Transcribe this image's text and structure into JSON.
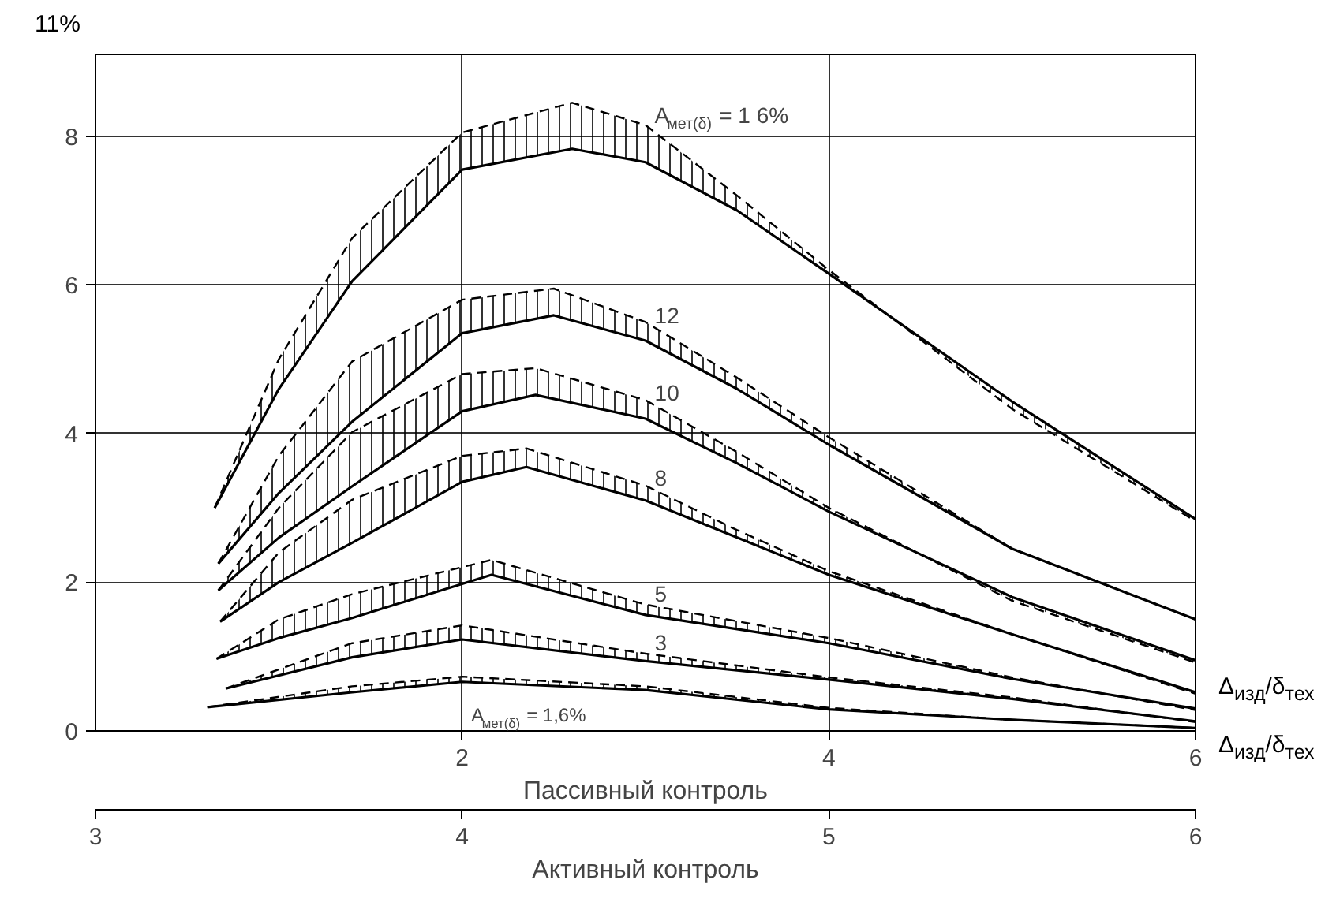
{
  "chart_data": {
    "type": "line",
    "xlabel": "Пассивный контроль",
    "x2label": "Активный контроль",
    "ylabel": "11%",
    "annotations": [
      "Δ$_{изд}$/δ$_{тех}$",
      "Δ$_{изд}$/δ$_{тех}$"
    ],
    "xlim": [
      0,
      6
    ],
    "xticks": [
      2,
      4,
      6
    ],
    "x2lim": [
      3,
      6
    ],
    "x2ticks": [
      3,
      4,
      5,
      6
    ],
    "ylim": [
      0,
      9.1
    ],
    "yticks": [
      0,
      2,
      4,
      6,
      8
    ],
    "grid": true,
    "marker": "none",
    "line_style": "solid",
    "series": [
      {
        "name": "A$_{мет(δ)}$ = 1 6%",
        "color": "#000000",
        "x": [
          0.65,
          1.0,
          1.4,
          2.0,
          2.6,
          3.0,
          3.5,
          4.0,
          5.0,
          6.0
        ],
        "values": [
          3.0,
          4.6,
          6.05,
          7.55,
          7.83,
          7.65,
          7.0,
          6.15,
          4.43,
          2.85
        ],
        "lower": [
          3.0,
          4.6,
          6.05,
          7.55,
          7.83,
          7.65,
          7.0,
          6.15,
          4.43,
          2.85
        ],
        "upper": [
          3.0,
          5.0,
          6.63,
          8.05,
          8.45,
          8.15,
          7.2,
          6.2,
          4.33,
          2.82
        ]
      },
      {
        "color": "#000000",
        "line_style": "dashed",
        "x": [
          0.65,
          1.0,
          1.4,
          2.0,
          2.6,
          3.0,
          3.5,
          4.0,
          5.0,
          6.0
        ],
        "values": [
          3.0,
          5.0,
          6.63,
          8.05,
          8.45,
          8.15,
          7.2,
          6.2,
          4.33,
          2.82
        ]
      },
      {
        "name": "12",
        "color": "#000000",
        "x": [
          0.67,
          1.0,
          1.4,
          2.0,
          2.5,
          3.0,
          3.5,
          4.0,
          5.0,
          6.0
        ],
        "values": [
          2.25,
          3.2,
          4.16,
          5.35,
          5.59,
          5.25,
          4.6,
          3.85,
          2.45,
          1.5
        ],
        "lower": [
          2.25,
          3.2,
          4.16,
          5.35,
          5.59,
          5.25,
          4.6,
          3.85,
          2.45,
          1.5
        ],
        "upper": [
          2.25,
          3.7,
          4.97,
          5.8,
          5.95,
          5.5,
          4.75,
          3.95,
          2.45,
          1.5
        ]
      },
      {
        "color": "#000000",
        "line_style": "dashed",
        "x": [
          0.67,
          1.0,
          1.4,
          2.0,
          2.5,
          3.0,
          3.5,
          4.0,
          5.0,
          6.0
        ],
        "values": [
          2.25,
          3.7,
          4.97,
          5.8,
          5.95,
          5.5,
          4.75,
          3.95,
          2.45,
          1.5
        ]
      },
      {
        "name": "10",
        "color": "#000000",
        "x": [
          0.67,
          1.0,
          1.4,
          2.0,
          2.4,
          3.0,
          3.5,
          4.0,
          5.0,
          6.0
        ],
        "values": [
          1.89,
          2.6,
          3.29,
          4.3,
          4.52,
          4.2,
          3.6,
          2.95,
          1.8,
          0.95
        ],
        "lower": [
          1.89,
          2.6,
          3.29,
          4.3,
          4.52,
          4.2,
          3.6,
          2.95,
          1.8,
          0.95
        ],
        "upper": [
          1.89,
          3.0,
          4.02,
          4.8,
          4.88,
          4.45,
          3.75,
          3.0,
          1.75,
          0.92
        ]
      },
      {
        "color": "#000000",
        "line_style": "dashed",
        "x": [
          0.67,
          1.0,
          1.4,
          2.0,
          2.4,
          3.0,
          3.5,
          4.0,
          5.0,
          6.0
        ],
        "values": [
          1.89,
          3.0,
          4.02,
          4.8,
          4.88,
          4.45,
          3.75,
          3.0,
          1.75,
          0.92
        ]
      },
      {
        "name": "8",
        "color": "#000000",
        "x": [
          0.68,
          1.0,
          1.4,
          2.0,
          2.35,
          3.0,
          3.5,
          4.0,
          5.0,
          6.0
        ],
        "values": [
          1.47,
          2.0,
          2.53,
          3.35,
          3.55,
          3.1,
          2.6,
          2.1,
          1.3,
          0.52
        ],
        "lower": [
          1.47,
          2.0,
          2.53,
          3.35,
          3.55,
          3.1,
          2.6,
          2.1,
          1.3,
          0.52
        ],
        "upper": [
          1.47,
          2.4,
          3.11,
          3.7,
          3.8,
          3.3,
          2.7,
          2.15,
          1.3,
          0.5
        ]
      },
      {
        "color": "#000000",
        "line_style": "dashed",
        "x": [
          0.68,
          1.0,
          1.4,
          2.0,
          2.35,
          3.0,
          3.5,
          4.0,
          5.0,
          6.0
        ],
        "values": [
          1.47,
          2.4,
          3.11,
          3.7,
          3.8,
          3.3,
          2.7,
          2.15,
          1.3,
          0.5
        ]
      },
      {
        "name": "5",
        "color": "#000000",
        "x": [
          0.66,
          1.0,
          1.4,
          2.16,
          3.0,
          4.0,
          5.0,
          6.0
        ],
        "values": [
          0.97,
          1.25,
          1.52,
          2.1,
          1.56,
          1.18,
          0.7,
          0.3
        ],
        "lower": [
          0.97,
          1.25,
          1.52,
          2.1,
          1.56,
          1.18,
          0.7,
          0.3
        ],
        "upper": [
          0.97,
          1.5,
          1.84,
          2.3,
          1.7,
          1.25,
          0.72,
          0.28
        ]
      },
      {
        "color": "#000000",
        "line_style": "dashed",
        "x": [
          0.66,
          1.0,
          1.4,
          2.16,
          3.0,
          4.0,
          5.0,
          6.0
        ],
        "values": [
          0.97,
          1.5,
          1.84,
          2.3,
          1.7,
          1.25,
          0.72,
          0.28
        ]
      },
      {
        "name": "3",
        "color": "#000000",
        "x": [
          0.71,
          1.4,
          2.0,
          3.0,
          4.0,
          5.0,
          6.0
        ],
        "values": [
          0.57,
          0.99,
          1.23,
          0.94,
          0.69,
          0.43,
          0.13
        ],
        "lower": [
          0.57,
          0.99,
          1.23,
          0.94,
          0.69,
          0.43,
          0.13
        ],
        "upper": [
          0.57,
          1.18,
          1.42,
          1.04,
          0.72,
          0.45,
          0.12
        ]
      },
      {
        "color": "#000000",
        "line_style": "dashed",
        "x": [
          0.71,
          1.4,
          2.0,
          3.0,
          4.0,
          5.0,
          6.0
        ],
        "values": [
          0.57,
          1.18,
          1.42,
          1.04,
          0.72,
          0.45,
          0.12
        ]
      },
      {
        "name": "A$_{мет(δ)}$ = 1,6%",
        "color": "#000000",
        "x": [
          0.61,
          1.4,
          2.0,
          3.0,
          4.0,
          5.0,
          6.0
        ],
        "values": [
          0.32,
          0.52,
          0.66,
          0.55,
          0.29,
          0.15,
          0.04
        ],
        "lower": [
          0.32,
          0.52,
          0.66,
          0.55,
          0.29,
          0.15,
          0.04
        ],
        "upper": [
          0.32,
          0.6,
          0.73,
          0.6,
          0.31,
          0.15,
          0.04
        ]
      },
      {
        "color": "#000000",
        "line_style": "dashed",
        "x": [
          0.61,
          1.4,
          2.0,
          3.0,
          4.0,
          5.0,
          6.0
        ],
        "values": [
          0.32,
          0.6,
          0.73,
          0.6,
          0.31,
          0.15,
          0.04
        ]
      }
    ]
  }
}
